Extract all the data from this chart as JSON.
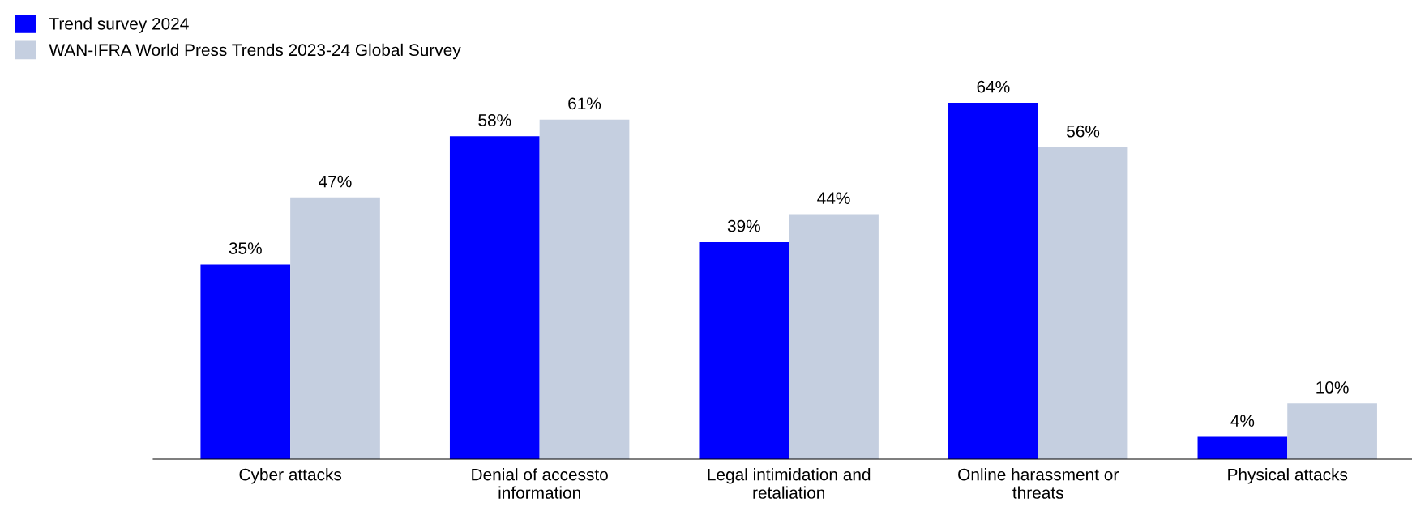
{
  "chart_data": {
    "type": "bar",
    "categories": [
      "Cyber attacks",
      "Denial of accessto\ninformation",
      "Legal intimidation and\nretaliation",
      "Online harassment or\nthreats",
      "Physical attacks"
    ],
    "series": [
      {
        "name": "Trend survey 2024",
        "color": "#0000ff",
        "values": [
          35,
          58,
          39,
          64,
          4
        ],
        "value_labels": [
          "35%",
          "58%",
          "39%",
          "64%",
          "4%"
        ]
      },
      {
        "name": "WAN-IFRA World Press Trends 2023-24 Global Survey",
        "color": "#c5cfe0",
        "values": [
          47,
          61,
          44,
          56,
          10
        ],
        "value_labels": [
          "47%",
          "61%",
          "44%",
          "56%",
          "10%"
        ]
      }
    ],
    "legend": "top left",
    "grid": false
  }
}
